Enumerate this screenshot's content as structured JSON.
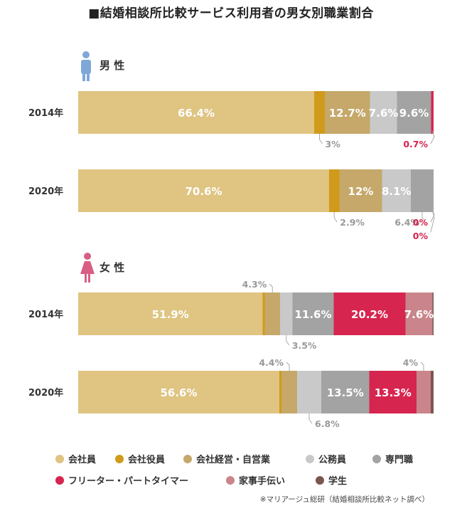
{
  "title": "■結婚相談所比較サービス利用者の男女別職業割合",
  "footnote": "※マリアージュ総研（結婚相談所比較ネット調べ）",
  "chart_data": {
    "type": "bar",
    "orientation": "horizontal",
    "stacked": true,
    "unit": "%",
    "xlim": [
      0,
      100
    ],
    "legend_position": "bottom",
    "groups": [
      {
        "label": "男 性",
        "icon": "male-person-icon",
        "rows": [
          {
            "year": "2014年",
            "values": [
              66.4,
              3,
              12.7,
              7.6,
              9.6,
              0.7,
              0,
              0
            ],
            "labels": [
              "66.4%",
              "3%",
              "12.7%",
              "7.6%",
              "9.6%",
              "0.7%",
              "",
              ""
            ]
          },
          {
            "year": "2020年",
            "values": [
              70.6,
              2.9,
              12,
              8.1,
              6.4,
              0,
              0,
              0
            ],
            "labels": [
              "70.6%",
              "2.9%",
              "12%",
              "8.1%",
              "6.4%",
              "0%",
              "",
              ""
            ]
          }
        ]
      },
      {
        "label": "女 性",
        "icon": "female-person-icon",
        "rows": [
          {
            "year": "2014年",
            "values": [
              51.9,
              0.6,
              4.3,
              3.5,
              11.6,
              20.2,
              7.6,
              0.3
            ],
            "labels": [
              "51.9%",
              "",
              "4.3%",
              "3.5%",
              "11.6%",
              "20.2%",
              "7.6%",
              ""
            ]
          },
          {
            "year": "2020年",
            "values": [
              56.6,
              0.6,
              4.4,
              6.8,
              13.5,
              13.3,
              4,
              0.8
            ],
            "labels": [
              "56.6%",
              "",
              "4.4%",
              "6.8%",
              "13.5%",
              "13.3%",
              "4%",
              ""
            ]
          }
        ]
      }
    ],
    "series": [
      {
        "name": "会社員",
        "color": "#dfc482"
      },
      {
        "name": "会社役員",
        "color": "#d09b1b"
      },
      {
        "name": "会社経営・自営業",
        "color": "#c5a86a"
      },
      {
        "name": "公務員",
        "color": "#c9c9c9"
      },
      {
        "name": "専門職",
        "color": "#a3a3a3"
      },
      {
        "name": "フリーター・パートタイマー",
        "color": "#d6254f"
      },
      {
        "name": "家事手伝い",
        "color": "#c9858b"
      },
      {
        "name": "学生",
        "color": "#7d5550"
      }
    ]
  }
}
